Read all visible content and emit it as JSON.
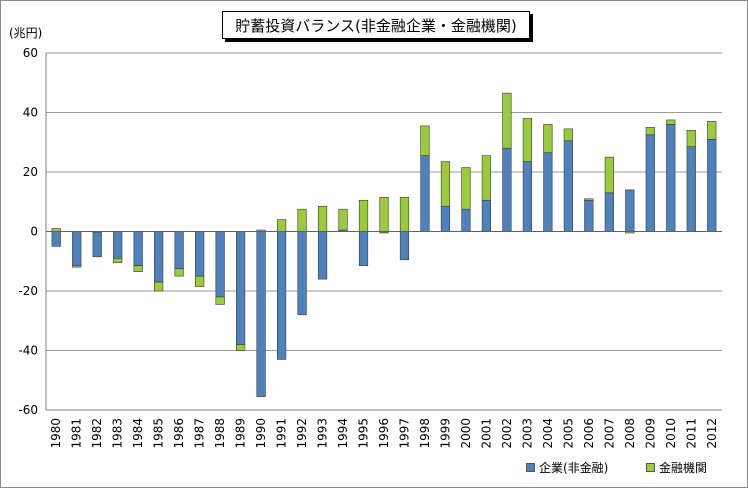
{
  "chart_data": {
    "type": "bar",
    "stacked": true,
    "title": "貯蓄投資バランス(非金融企業・金融機関)",
    "unit_label": "(兆円)",
    "ylim": [
      -60,
      60
    ],
    "yticks": [
      60,
      40,
      20,
      0,
      -20,
      -40,
      -60
    ],
    "grid": true,
    "legend_position": "bottom-right",
    "categories": [
      "1980",
      "1981",
      "1982",
      "1983",
      "1984",
      "1985",
      "1986",
      "1987",
      "1988",
      "1989",
      "1990",
      "1991",
      "1992",
      "1993",
      "1994",
      "1995",
      "1996",
      "1997",
      "1998",
      "1999",
      "2000",
      "2001",
      "2002",
      "2003",
      "2004",
      "2005",
      "2006",
      "2007",
      "2008",
      "2009",
      "2010",
      "2011",
      "2012"
    ],
    "series": [
      {
        "name": "企業(非金融)",
        "color": "#4f81bd",
        "values": [
          -5,
          -11.5,
          -8.5,
          -9,
          -11.5,
          -17,
          -12.5,
          -15,
          -22,
          -38,
          -55.5,
          -43,
          -28,
          -16,
          0.5,
          -11.5,
          -0.5,
          -9.5,
          25.5,
          8.5,
          7.5,
          10.5,
          28,
          23.5,
          26.5,
          30.5,
          10.5,
          13,
          14,
          32.5,
          36,
          28.5,
          31
        ]
      },
      {
        "name": "金融機関",
        "color": "#9bcb3b",
        "values": [
          1,
          -0.5,
          0,
          -1.5,
          -2,
          -3,
          -2.5,
          -3.5,
          -2.5,
          -2,
          0.5,
          4,
          7.5,
          8.5,
          7,
          10.5,
          11.5,
          11.5,
          10,
          15,
          14,
          15,
          18.5,
          14.5,
          9.5,
          4,
          0.5,
          12,
          -0.5,
          2.5,
          1.5,
          5.5,
          6
        ]
      }
    ]
  }
}
